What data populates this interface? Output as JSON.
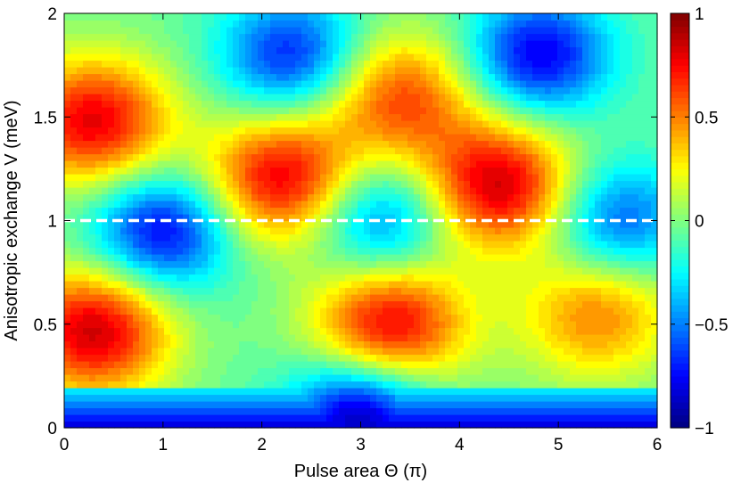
{
  "chart_data": {
    "type": "heatmap",
    "title": "",
    "xlabel": "Pulse area Θ (π)",
    "ylabel": "Anisotropic exchange V (meV)",
    "xlim": [
      0,
      6
    ],
    "ylim": [
      0,
      2
    ],
    "x_ticks": [
      0,
      1,
      2,
      3,
      4,
      5,
      6
    ],
    "x_tick_labels": [
      "0",
      "1",
      "2",
      "3",
      "4",
      "5",
      "6"
    ],
    "y_ticks": [
      0,
      0.5,
      1,
      1.5,
      2
    ],
    "y_tick_labels": [
      "0",
      "0.5",
      "1",
      "1.5",
      "2"
    ],
    "colorbar": {
      "range": [
        -1,
        1
      ],
      "ticks": [
        -1,
        -0.5,
        0,
        0.5,
        1
      ],
      "tick_labels": [
        "−1",
        "−0.5",
        "0",
        "0.5",
        "1"
      ],
      "colormap": "jet"
    },
    "reference_line": {
      "y": 1,
      "style": "dashed",
      "color": "#ffffff"
    },
    "grid": false,
    "features": [
      {
        "kind": "max",
        "x": 0.3,
        "y": 0.47,
        "value": 0.85
      },
      {
        "kind": "max",
        "x": 0.3,
        "y": 1.48,
        "value": 0.8
      },
      {
        "kind": "max",
        "x": 2.2,
        "y": 1.2,
        "value": 0.8
      },
      {
        "kind": "max",
        "x": 3.3,
        "y": 0.5,
        "value": 0.8
      },
      {
        "kind": "max",
        "x": 4.4,
        "y": 1.17,
        "value": 0.85
      },
      {
        "kind": "max",
        "x": 3.4,
        "y": 1.6,
        "value": 0.6
      },
      {
        "kind": "max",
        "x": 5.4,
        "y": 0.55,
        "value": 0.5
      },
      {
        "kind": "min",
        "x": 2.3,
        "y": 1.8,
        "value": -0.7
      },
      {
        "kind": "min",
        "x": 4.8,
        "y": 1.8,
        "value": -0.8
      },
      {
        "kind": "min",
        "x": 1.0,
        "y": 0.95,
        "value": -0.8
      },
      {
        "kind": "min",
        "x": 3.2,
        "y": 1.0,
        "value": -0.6
      },
      {
        "kind": "min",
        "x": 5.6,
        "y": 1.0,
        "value": -0.6
      },
      {
        "kind": "min",
        "x": 3.0,
        "y": 0.05,
        "value": -0.95
      }
    ]
  }
}
